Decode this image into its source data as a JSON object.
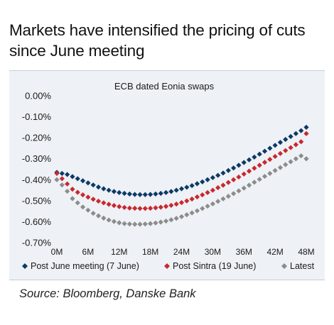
{
  "page": {
    "title": "Markets have intensified the pricing of cuts since June meeting",
    "source": "Source: Bloomberg, Danske Bank"
  },
  "chart_data": {
    "type": "scatter",
    "title": "ECB dated Eonia swaps",
    "xlabel": "",
    "ylabel": "",
    "x_ticks": [
      "0M",
      "6M",
      "12M",
      "18M",
      "24M",
      "30M",
      "36M",
      "42M",
      "48M"
    ],
    "y_ticks": [
      "0.00%",
      "-0.10%",
      "-0.20%",
      "-0.30%",
      "-0.40%",
      "-0.50%",
      "-0.60%",
      "-0.70%"
    ],
    "xlim": [
      0,
      48
    ],
    "ylim": [
      -0.7,
      0.0
    ],
    "grid": false,
    "legend_position": "bottom",
    "marker": "diamond",
    "series": [
      {
        "name": "Post June meeting (7 June)",
        "color": "#0d3a66",
        "x": [
          0,
          1,
          2,
          3,
          4,
          5,
          6,
          7,
          8,
          9,
          10,
          11,
          12,
          13,
          14,
          15,
          16,
          17,
          18,
          19,
          20,
          21,
          22,
          23,
          24,
          25,
          26,
          27,
          28,
          29,
          30,
          31,
          32,
          33,
          34,
          35,
          36,
          37,
          38,
          39,
          40,
          41,
          42,
          43,
          44,
          45,
          46,
          47,
          48
        ],
        "y": [
          -0.365,
          -0.37,
          -0.375,
          -0.385,
          -0.395,
          -0.405,
          -0.415,
          -0.425,
          -0.435,
          -0.443,
          -0.45,
          -0.456,
          -0.461,
          -0.465,
          -0.468,
          -0.47,
          -0.471,
          -0.471,
          -0.47,
          -0.468,
          -0.465,
          -0.461,
          -0.456,
          -0.45,
          -0.443,
          -0.436,
          -0.428,
          -0.419,
          -0.41,
          -0.4,
          -0.39,
          -0.379,
          -0.368,
          -0.356,
          -0.344,
          -0.331,
          -0.318,
          -0.305,
          -0.292,
          -0.278,
          -0.264,
          -0.25,
          -0.236,
          -0.222,
          -0.208,
          -0.194,
          -0.18,
          -0.166,
          -0.15
        ]
      },
      {
        "name": "Post Sintra (19 June)",
        "color": "#c8282f",
        "x": [
          0,
          1,
          2,
          3,
          4,
          5,
          6,
          7,
          8,
          9,
          10,
          11,
          12,
          13,
          14,
          15,
          16,
          17,
          18,
          19,
          20,
          21,
          22,
          23,
          24,
          25,
          26,
          27,
          28,
          29,
          30,
          31,
          32,
          33,
          34,
          35,
          36,
          37,
          38,
          39,
          40,
          41,
          42,
          43,
          44,
          45,
          46,
          47,
          48
        ],
        "y": [
          -0.37,
          -0.395,
          -0.42,
          -0.445,
          -0.46,
          -0.472,
          -0.483,
          -0.493,
          -0.502,
          -0.51,
          -0.517,
          -0.523,
          -0.528,
          -0.532,
          -0.535,
          -0.536,
          -0.537,
          -0.537,
          -0.536,
          -0.534,
          -0.531,
          -0.527,
          -0.522,
          -0.516,
          -0.509,
          -0.501,
          -0.492,
          -0.482,
          -0.472,
          -0.461,
          -0.45,
          -0.438,
          -0.426,
          -0.413,
          -0.4,
          -0.387,
          -0.373,
          -0.359,
          -0.345,
          -0.331,
          -0.317,
          -0.303,
          -0.289,
          -0.275,
          -0.261,
          -0.247,
          -0.233,
          -0.219,
          -0.18
        ]
      },
      {
        "name": "Latest",
        "color": "#8c8c8c",
        "x": [
          0,
          1,
          2,
          3,
          4,
          5,
          6,
          7,
          8,
          9,
          10,
          11,
          12,
          13,
          14,
          15,
          16,
          17,
          18,
          19,
          20,
          21,
          22,
          23,
          24,
          25,
          26,
          27,
          28,
          29,
          30,
          31,
          32,
          33,
          34,
          35,
          36,
          37,
          38,
          39,
          40,
          41,
          42,
          43,
          44,
          45,
          46,
          47,
          48
        ],
        "y": [
          -0.4,
          -0.425,
          -0.455,
          -0.49,
          -0.51,
          -0.53,
          -0.545,
          -0.56,
          -0.572,
          -0.583,
          -0.592,
          -0.599,
          -0.605,
          -0.609,
          -0.611,
          -0.612,
          -0.612,
          -0.611,
          -0.609,
          -0.606,
          -0.602,
          -0.597,
          -0.591,
          -0.584,
          -0.576,
          -0.567,
          -0.558,
          -0.548,
          -0.537,
          -0.526,
          -0.515,
          -0.503,
          -0.491,
          -0.479,
          -0.466,
          -0.453,
          -0.44,
          -0.426,
          -0.412,
          -0.398,
          -0.384,
          -0.37,
          -0.356,
          -0.342,
          -0.328,
          -0.314,
          -0.3,
          -0.286,
          -0.3
        ]
      }
    ]
  }
}
